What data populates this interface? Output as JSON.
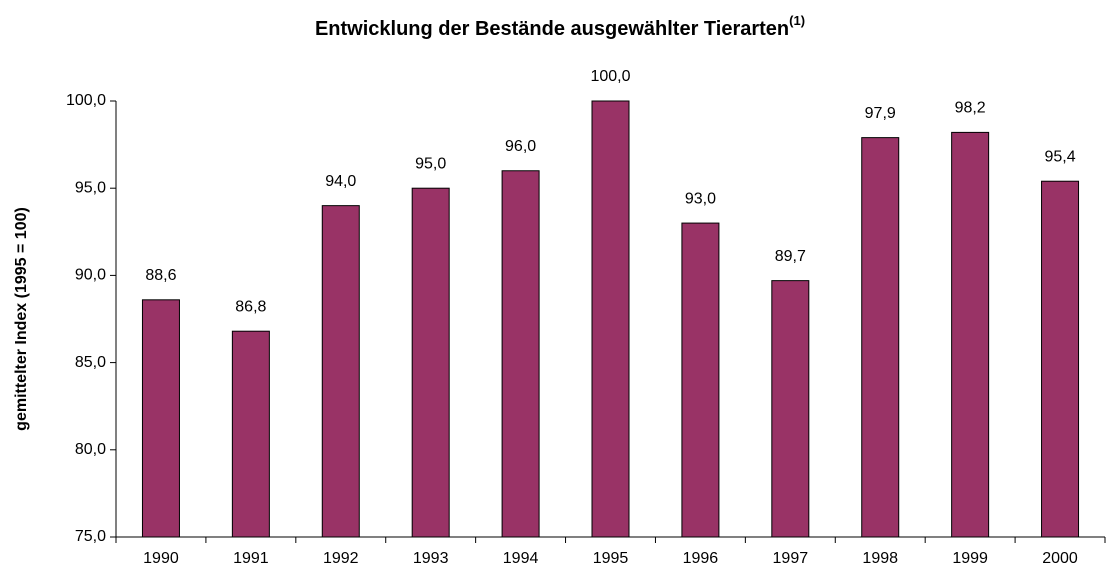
{
  "chart_data": {
    "type": "bar",
    "title": "Entwicklung der Bestände ausgewählter Tierarten",
    "title_superscript": "(1)",
    "y_axis_label": "gemittelter Index (1995 = 100)",
    "categories": [
      "1990",
      "1991",
      "1992",
      "1993",
      "1994",
      "1995",
      "1996",
      "1997",
      "1998",
      "1999",
      "2000"
    ],
    "values": [
      88.6,
      86.8,
      94.0,
      95.0,
      96.0,
      100.0,
      93.0,
      89.7,
      97.9,
      98.2,
      95.4
    ],
    "value_labels": [
      "88,6",
      "86,8",
      "94,0",
      "95,0",
      "96,0",
      "100,0",
      "93,0",
      "89,7",
      "97,9",
      "98,2",
      "95,4"
    ],
    "color": "#993366",
    "ylim": [
      75,
      100
    ],
    "yticks": [
      {
        "value": 75,
        "label": "75,0"
      },
      {
        "value": 80,
        "label": "80,0"
      },
      {
        "value": 85,
        "label": "85,0"
      },
      {
        "value": 90,
        "label": "90,0"
      },
      {
        "value": 95,
        "label": "95,0"
      },
      {
        "value": 100,
        "label": "100,0"
      }
    ],
    "grid": false
  }
}
